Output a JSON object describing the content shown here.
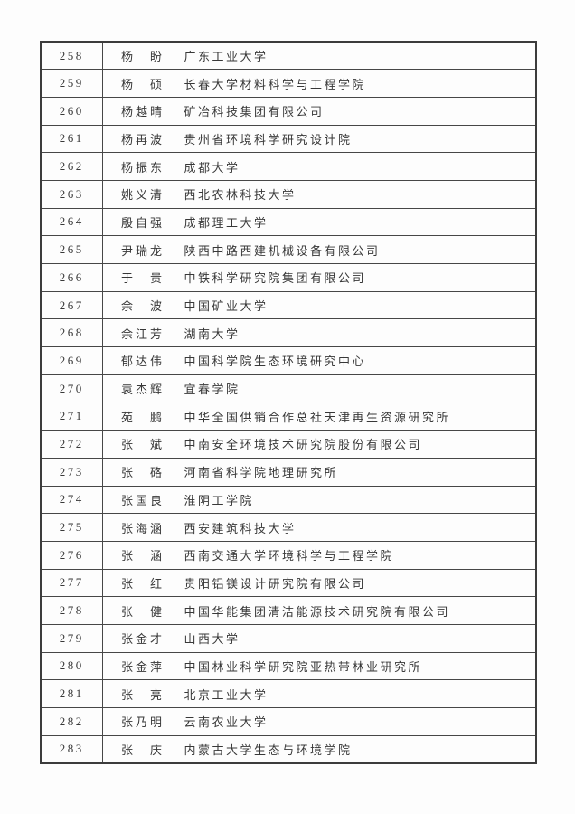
{
  "page": {
    "background_color": "#fdfdfd",
    "text_color": "#383838",
    "border_color": "#3c3c3c"
  },
  "table": {
    "first_row_number": "258",
    "last_row_number": "283",
    "rows": [
      {
        "num": "258",
        "name": "杨　盼",
        "org": "广东工业大学"
      },
      {
        "num": "259",
        "name": "杨　硕",
        "org": "长春大学材料科学与工程学院"
      },
      {
        "num": "260",
        "name": "杨越晴",
        "org": "矿冶科技集团有限公司"
      },
      {
        "num": "261",
        "name": "杨再波",
        "org": "贵州省环境科学研究设计院"
      },
      {
        "num": "262",
        "name": "杨振东",
        "org": "成都大学"
      },
      {
        "num": "263",
        "name": "姚义清",
        "org": "西北农林科技大学"
      },
      {
        "num": "264",
        "name": "殷自强",
        "org": "成都理工大学"
      },
      {
        "num": "265",
        "name": "尹瑞龙",
        "org": "陕西中路西建机械设备有限公司"
      },
      {
        "num": "266",
        "name": "于　贵",
        "org": "中铁科学研究院集团有限公司"
      },
      {
        "num": "267",
        "name": "余　波",
        "org": "中国矿业大学"
      },
      {
        "num": "268",
        "name": "余江芳",
        "org": "湖南大学"
      },
      {
        "num": "269",
        "name": "郁达伟",
        "org": "中国科学院生态环境研究中心"
      },
      {
        "num": "270",
        "name": "袁杰辉",
        "org": "宜春学院"
      },
      {
        "num": "271",
        "name": "苑　鹏",
        "org": "中华全国供销合作总社天津再生资源研究所"
      },
      {
        "num": "272",
        "name": "张　斌",
        "org": "中南安全环境技术研究院股份有限公司"
      },
      {
        "num": "273",
        "name": "张　硌",
        "org": "河南省科学院地理研究所"
      },
      {
        "num": "274",
        "name": "张国良",
        "org": "淮阴工学院"
      },
      {
        "num": "275",
        "name": "张海涵",
        "org": "西安建筑科技大学"
      },
      {
        "num": "276",
        "name": "张　涵",
        "org": "西南交通大学环境科学与工程学院"
      },
      {
        "num": "277",
        "name": "张　红",
        "org": "贵阳铝镁设计研究院有限公司"
      },
      {
        "num": "278",
        "name": "张　健",
        "org": "中国华能集团清洁能源技术研究院有限公司"
      },
      {
        "num": "279",
        "name": "张金才",
        "org": "山西大学"
      },
      {
        "num": "280",
        "name": "张金萍",
        "org": "中国林业科学研究院亚热带林业研究所"
      },
      {
        "num": "281",
        "name": "张　亮",
        "org": "北京工业大学"
      },
      {
        "num": "282",
        "name": "张乃明",
        "org": "云南农业大学"
      },
      {
        "num": "283",
        "name": "张　庆",
        "org": "内蒙古大学生态与环境学院"
      }
    ]
  }
}
